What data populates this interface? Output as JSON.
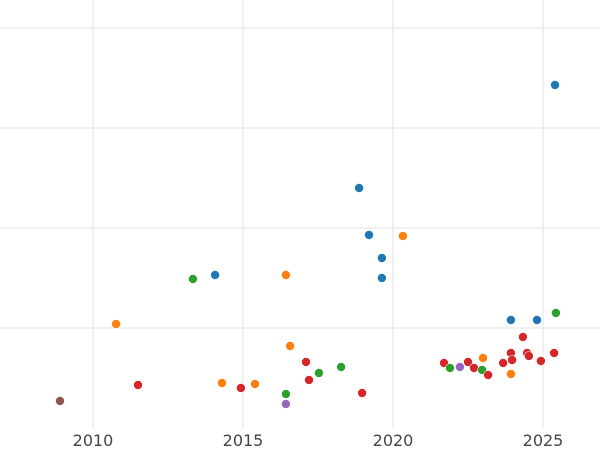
{
  "chart_data": {
    "type": "scatter",
    "title": "",
    "xlabel": "",
    "ylabel": "",
    "xlim": [
      2006.9,
      2026.9
    ],
    "ylim": [
      0,
      4.28
    ],
    "x_ticks": [
      2010,
      2015,
      2020,
      2025
    ],
    "x_tick_labels": [
      "2010",
      "2015",
      "2020",
      "2025"
    ],
    "y_gridlines": [
      1,
      2,
      3,
      4
    ],
    "grid": true,
    "legend": "none",
    "colors": {
      "blue": "#1f77b4",
      "orange": "#ff7f0e",
      "green": "#2ca02c",
      "red": "#d62728",
      "purple": "#9467bd",
      "brown": "#8c564b"
    },
    "points": [
      {
        "x": 2008.9,
        "y": 0.27,
        "color": "brown"
      },
      {
        "x": 2010.77,
        "y": 1.04,
        "color": "orange"
      },
      {
        "x": 2011.5,
        "y": 0.43,
        "color": "red"
      },
      {
        "x": 2013.33,
        "y": 1.49,
        "color": "green"
      },
      {
        "x": 2014.07,
        "y": 1.53,
        "color": "blue"
      },
      {
        "x": 2014.3,
        "y": 0.45,
        "color": "orange"
      },
      {
        "x": 2014.93,
        "y": 0.4,
        "color": "red"
      },
      {
        "x": 2015.4,
        "y": 0.44,
        "color": "orange"
      },
      {
        "x": 2016.43,
        "y": 1.53,
        "color": "orange"
      },
      {
        "x": 2016.57,
        "y": 0.82,
        "color": "orange"
      },
      {
        "x": 2016.43,
        "y": 0.34,
        "color": "green"
      },
      {
        "x": 2016.43,
        "y": 0.24,
        "color": "purple"
      },
      {
        "x": 2017.1,
        "y": 0.66,
        "color": "red"
      },
      {
        "x": 2017.2,
        "y": 0.48,
        "color": "red"
      },
      {
        "x": 2017.53,
        "y": 0.55,
        "color": "green"
      },
      {
        "x": 2018.27,
        "y": 0.61,
        "color": "green"
      },
      {
        "x": 2018.87,
        "y": 2.4,
        "color": "blue"
      },
      {
        "x": 2018.97,
        "y": 0.35,
        "color": "red"
      },
      {
        "x": 2019.2,
        "y": 1.93,
        "color": "blue"
      },
      {
        "x": 2019.63,
        "y": 1.7,
        "color": "blue"
      },
      {
        "x": 2019.63,
        "y": 1.5,
        "color": "blue"
      },
      {
        "x": 2020.33,
        "y": 1.92,
        "color": "orange"
      },
      {
        "x": 2025.4,
        "y": 3.43,
        "color": "blue"
      },
      {
        "x": 2021.7,
        "y": 0.65,
        "color": "red"
      },
      {
        "x": 2021.9,
        "y": 0.6,
        "color": "green"
      },
      {
        "x": 2022.23,
        "y": 0.61,
        "color": "purple"
      },
      {
        "x": 2022.5,
        "y": 0.66,
        "color": "red"
      },
      {
        "x": 2022.7,
        "y": 0.6,
        "color": "red"
      },
      {
        "x": 2023.0,
        "y": 0.7,
        "color": "orange"
      },
      {
        "x": 2022.97,
        "y": 0.58,
        "color": "green"
      },
      {
        "x": 2023.17,
        "y": 0.53,
        "color": "red"
      },
      {
        "x": 2023.67,
        "y": 0.65,
        "color": "red"
      },
      {
        "x": 2023.93,
        "y": 1.08,
        "color": "blue"
      },
      {
        "x": 2023.93,
        "y": 0.75,
        "color": "red"
      },
      {
        "x": 2023.97,
        "y": 0.68,
        "color": "red"
      },
      {
        "x": 2023.93,
        "y": 0.54,
        "color": "orange"
      },
      {
        "x": 2024.33,
        "y": 0.91,
        "color": "red"
      },
      {
        "x": 2024.47,
        "y": 0.75,
        "color": "red"
      },
      {
        "x": 2024.53,
        "y": 0.72,
        "color": "red"
      },
      {
        "x": 2024.8,
        "y": 1.08,
        "color": "blue"
      },
      {
        "x": 2024.93,
        "y": 0.67,
        "color": "red"
      },
      {
        "x": 2025.37,
        "y": 0.75,
        "color": "red"
      },
      {
        "x": 2025.43,
        "y": 1.15,
        "color": "green"
      }
    ]
  }
}
